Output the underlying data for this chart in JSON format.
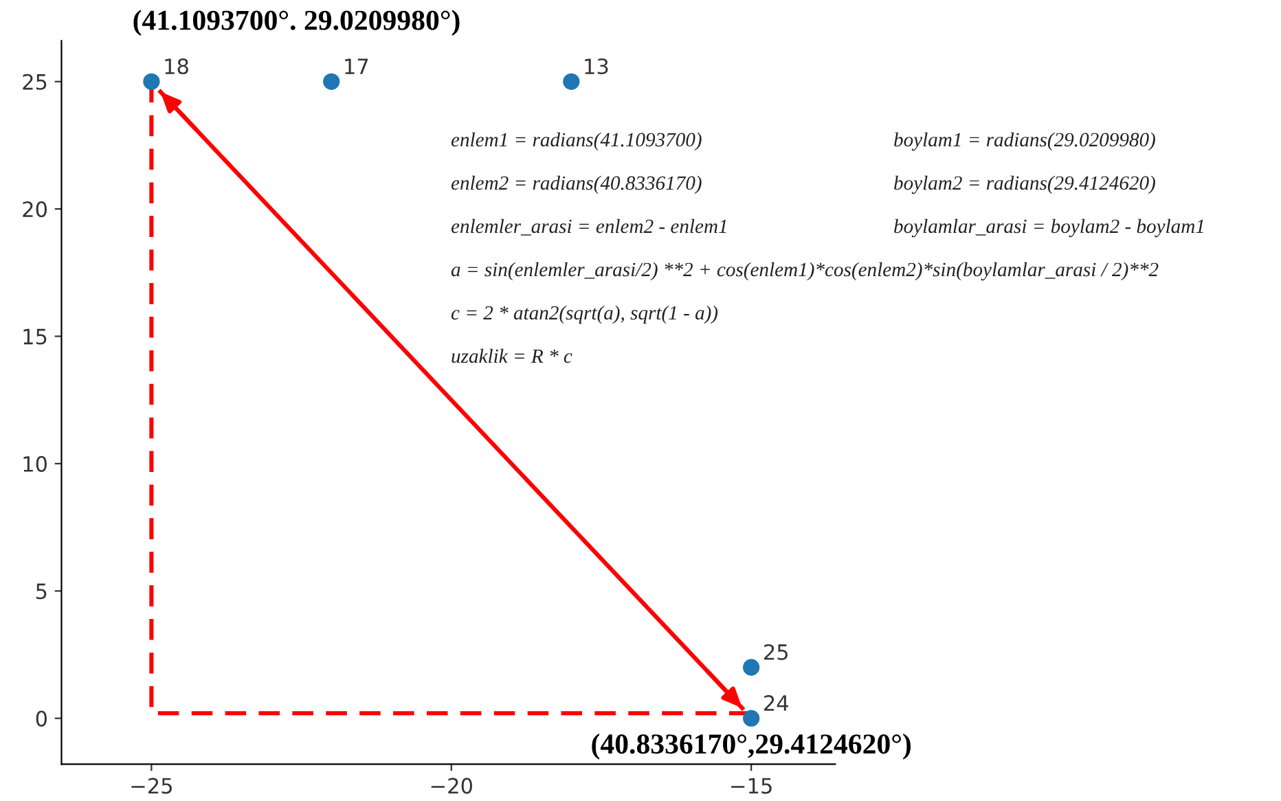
{
  "chart_data": {
    "type": "scatter",
    "xlim": [
      -26.5,
      -13.6
    ],
    "ylim": [
      -1.8,
      26.6
    ],
    "xticks": [
      -25,
      -20,
      -15
    ],
    "yticks": [
      0,
      5,
      10,
      15,
      20,
      25
    ],
    "grid": false,
    "legend": false,
    "series": [
      {
        "type": "line",
        "color": "#ff0000",
        "line_style": "dashed",
        "marker": "none",
        "x": [
          -25,
          -25,
          -15
        ],
        "values": [
          25,
          0.2,
          0.2
        ]
      },
      {
        "type": "line",
        "color": "#ff0000",
        "line_style": "solid",
        "marker": "none",
        "x": [
          -24.85,
          -15.15
        ],
        "values": [
          24.6,
          0.4
        ]
      },
      {
        "color": "#1f77b4",
        "marker": "circle",
        "x": [
          -25,
          -22,
          -18,
          -15,
          -15
        ],
        "values": [
          25,
          25,
          25,
          2,
          0
        ]
      }
    ],
    "annotations": [
      {
        "text": "18",
        "x": -25,
        "y": 25
      },
      {
        "text": "17",
        "x": -22,
        "y": 25
      },
      {
        "text": "13",
        "x": -18,
        "y": 25
      },
      {
        "text": "25",
        "x": -15,
        "y": 2
      },
      {
        "text": "24",
        "x": -15,
        "y": 0
      },
      {
        "text": "(41.1093700°. 29.0209980°)",
        "x": -25,
        "y": 25
      },
      {
        "text": "(40.8336170°,29.4124620°)",
        "x": -15,
        "y": 0
      },
      "enlem1 = radians(41.1093700)",
      "enlem2 = radians(40.8336170)",
      "enlemler_arasi = enlem2 - enlem1",
      "a = sin(enlemler_arasi/2) **2 + cos(enlem1)*cos(enlem2)*sin(boylamlar_arasi / 2)**2",
      "c = 2 * atan2(sqrt(a), sqrt(1 - a))",
      "uzaklik = R * c",
      "boylam1 = radians(29.0209980)",
      "boylam2 = radians(29.4124620)",
      "boylamlar_arasi = boylam2 - boylam1"
    ]
  }
}
